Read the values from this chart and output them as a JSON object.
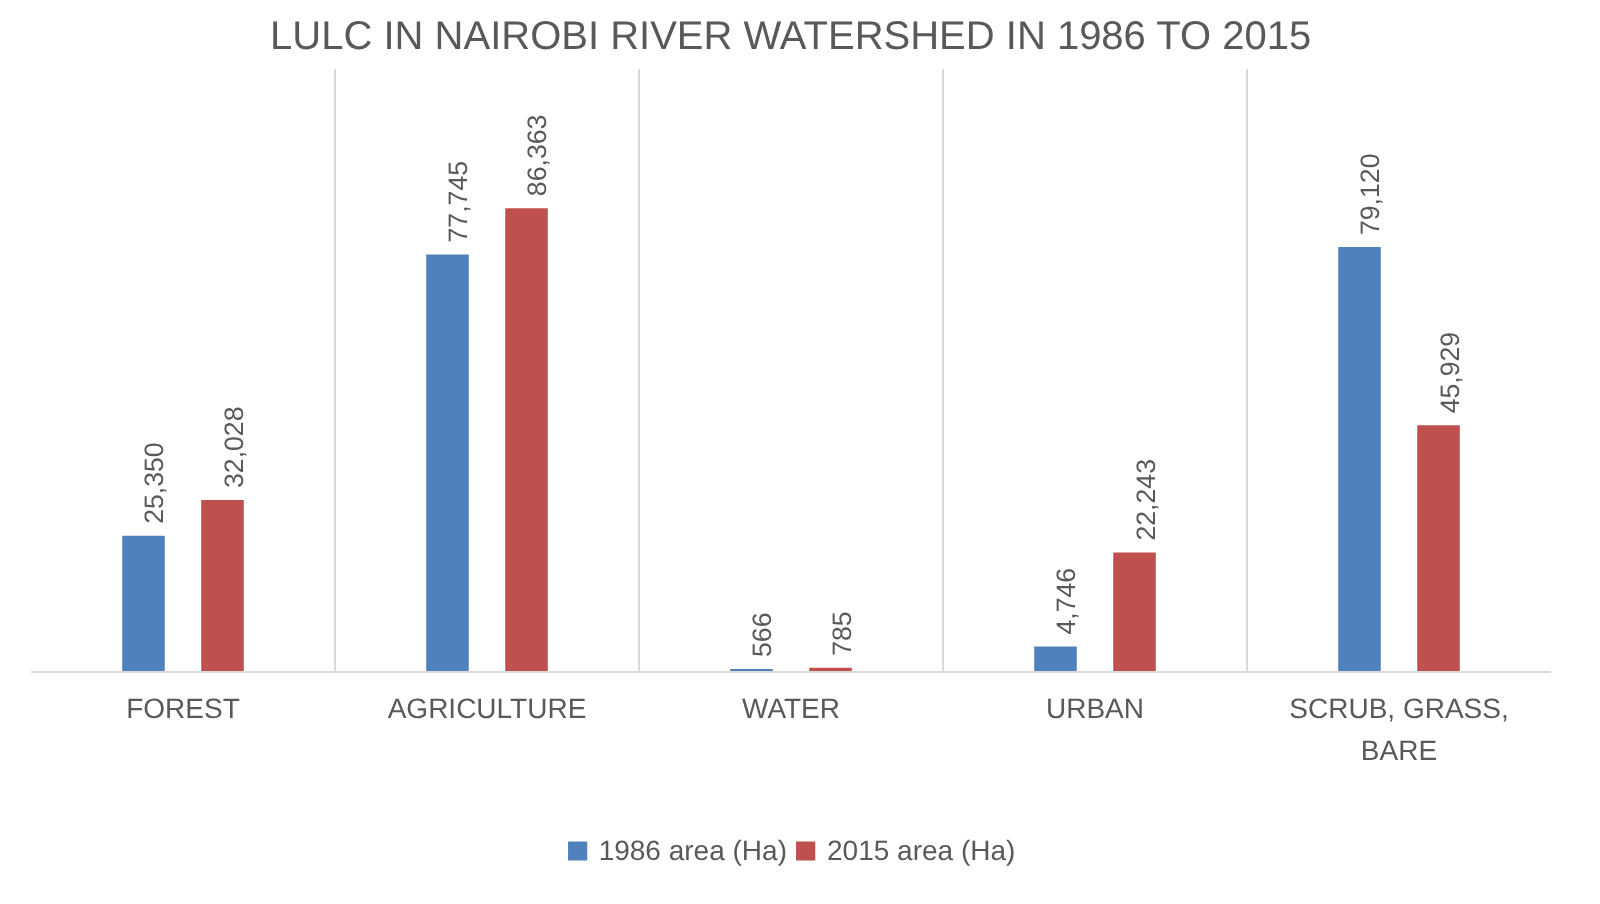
{
  "chart_data": {
    "type": "bar",
    "title": "LULC IN NAIROBI RIVER WATERSHED IN 1986 TO 2015",
    "categories": [
      "FOREST",
      "AGRICULTURE",
      "WATER",
      "URBAN",
      "SCRUB, GRASS, BARE"
    ],
    "series": [
      {
        "name": "1986 area (Ha)",
        "color": "#4f81bd",
        "values": [
          25350,
          77745,
          566,
          4746,
          79120
        ],
        "value_labels": [
          "25,350",
          "77,745",
          "566",
          "4,746",
          "79,120"
        ]
      },
      {
        "name": "2015 area (Ha)",
        "color": "#c0504d",
        "values": [
          32028,
          86363,
          785,
          22243,
          45929
        ],
        "value_labels": [
          "32,028",
          "86,363",
          "785",
          "22,243",
          "45,929"
        ]
      }
    ],
    "grid": "x",
    "legend": "bottom"
  }
}
